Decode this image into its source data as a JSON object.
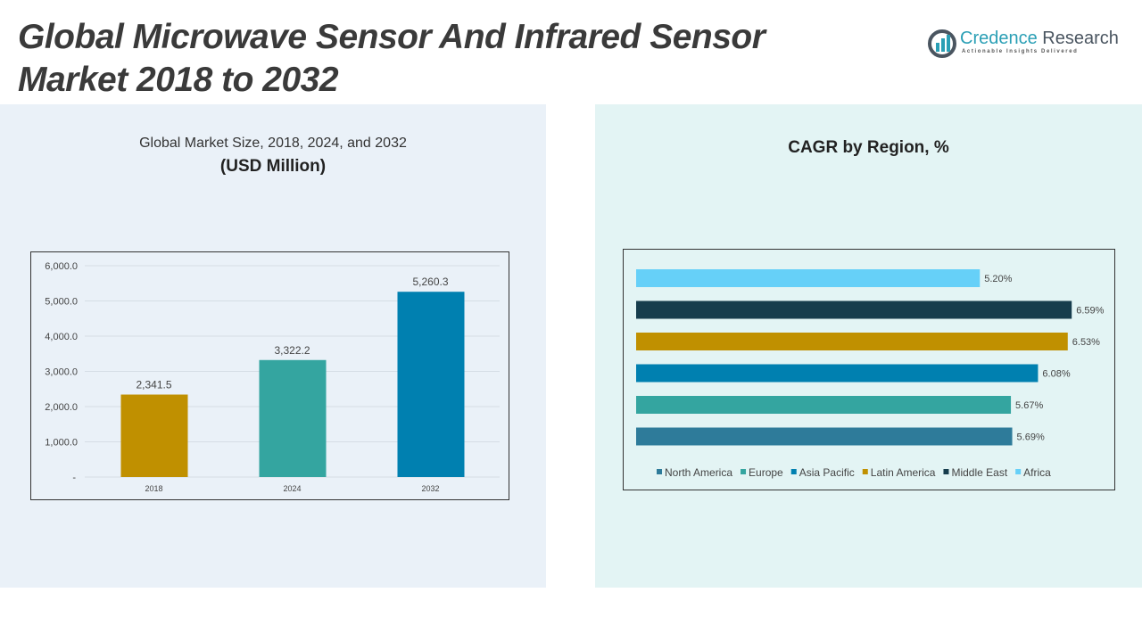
{
  "title_line1": "Global Microwave Sensor And Infrared Sensor",
  "title_line2": "Market 2018 to 2032",
  "logo": {
    "name_a": "Credence",
    "name_b": " Research",
    "tagline": "Actionable Insights Delivered"
  },
  "chart_data": [
    {
      "type": "bar",
      "title": "Global Market Size, 2018, 2024, and 2032",
      "subtitle": "(USD Million)",
      "categories": [
        "2018",
        "2024",
        "2032"
      ],
      "values": [
        2341.5,
        3322.2,
        5260.3
      ],
      "value_labels": [
        "2,341.5",
        "3,322.2",
        "5,260.3"
      ],
      "colors": [
        "#c09000",
        "#34a5a0",
        "#0080b0"
      ],
      "ylim": [
        0,
        6000
      ],
      "yticks": [
        0,
        1000,
        2000,
        3000,
        4000,
        5000,
        6000
      ],
      "ytick_labels": [
        "-",
        "1,000.0",
        "2,000.0",
        "3,000.0",
        "4,000.0",
        "5,000.0",
        "6,000.0"
      ],
      "grid": true
    },
    {
      "type": "bar",
      "orientation": "horizontal",
      "title": "CAGR by Region, %",
      "categories": [
        "North America",
        "Europe",
        "Asia Pacific",
        "Latin America",
        "Middle East",
        "Africa"
      ],
      "values": [
        5.69,
        5.67,
        6.08,
        6.53,
        6.59,
        5.2
      ],
      "value_labels": [
        "5.69%",
        "5.67%",
        "6.08%",
        "6.53%",
        "6.59%",
        "5.20%"
      ],
      "colors": [
        "#2e7b9a",
        "#34a5a0",
        "#0080b0",
        "#c09000",
        "#173d4d",
        "#66d0f8"
      ],
      "xlim": [
        0,
        7.1
      ],
      "legend": "bottom"
    }
  ]
}
